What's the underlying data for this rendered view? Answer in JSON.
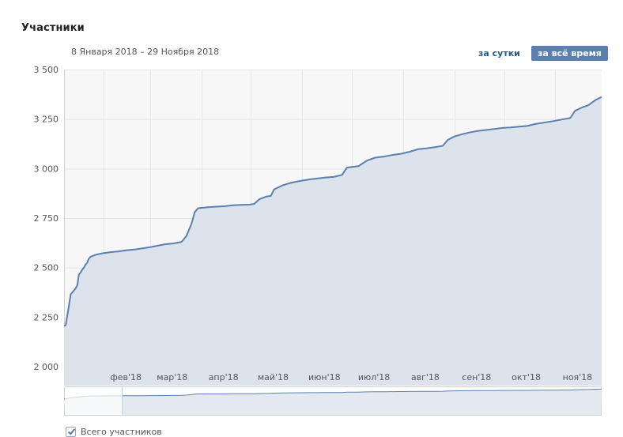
{
  "header": {
    "title": "Участники",
    "date_range": "8 Января 2018 – 29 Ноября 2018"
  },
  "controls": {
    "day_label": "за сутки",
    "all_time_label": "за всё время"
  },
  "legend": {
    "series_label": "Всего участников",
    "checked": true
  },
  "colors": {
    "line": "#5b7faf",
    "area": "#dde3ec",
    "plot_bg": "#f7f7f7",
    "button_active": "#5b7faf"
  },
  "chart_data": {
    "type": "area",
    "title": "Участники",
    "xlabel": "",
    "ylabel": "",
    "ylim": [
      2000,
      3500
    ],
    "yticks": [
      2000,
      2250,
      2500,
      2750,
      3000,
      3250,
      3500
    ],
    "ytick_labels": [
      "2 000",
      "2 250",
      "2 500",
      "2 750",
      "3 000",
      "3 250",
      "3 500"
    ],
    "xlim": [
      "2018-01-08",
      "2018-11-29"
    ],
    "month_ticks": [
      {
        "date": "2018-02-01",
        "label": "фев'18"
      },
      {
        "date": "2018-03-01",
        "label": "мар'18"
      },
      {
        "date": "2018-04-01",
        "label": "апр'18"
      },
      {
        "date": "2018-05-01",
        "label": "май'18"
      },
      {
        "date": "2018-06-01",
        "label": "июн'18"
      },
      {
        "date": "2018-07-01",
        "label": "июл'18"
      },
      {
        "date": "2018-08-01",
        "label": "авг'18"
      },
      {
        "date": "2018-09-01",
        "label": "сен'18"
      },
      {
        "date": "2018-10-01",
        "label": "окт'18"
      },
      {
        "date": "2018-11-01",
        "label": "ноя'18"
      }
    ],
    "grid": true,
    "legend_position": "bottom-left",
    "series": [
      {
        "name": "Всего участников",
        "points": [
          [
            "2018-01-08",
            2205
          ],
          [
            "2018-01-09",
            2210
          ],
          [
            "2018-01-10",
            2260
          ],
          [
            "2018-01-11",
            2310
          ],
          [
            "2018-01-12",
            2365
          ],
          [
            "2018-01-13",
            2375
          ],
          [
            "2018-01-14",
            2385
          ],
          [
            "2018-01-15",
            2395
          ],
          [
            "2018-01-16",
            2410
          ],
          [
            "2018-01-17",
            2465
          ],
          [
            "2018-01-18",
            2475
          ],
          [
            "2018-01-19",
            2490
          ],
          [
            "2018-01-20",
            2500
          ],
          [
            "2018-01-21",
            2515
          ],
          [
            "2018-01-22",
            2525
          ],
          [
            "2018-01-23",
            2545
          ],
          [
            "2018-01-24",
            2555
          ],
          [
            "2018-01-27",
            2565
          ],
          [
            "2018-01-31",
            2572
          ],
          [
            "2018-02-05",
            2578
          ],
          [
            "2018-02-10",
            2582
          ],
          [
            "2018-02-15",
            2588
          ],
          [
            "2018-02-20",
            2592
          ],
          [
            "2018-02-25",
            2598
          ],
          [
            "2018-03-01",
            2603
          ],
          [
            "2018-03-05",
            2610
          ],
          [
            "2018-03-10",
            2618
          ],
          [
            "2018-03-15",
            2622
          ],
          [
            "2018-03-20",
            2630
          ],
          [
            "2018-03-23",
            2660
          ],
          [
            "2018-03-26",
            2720
          ],
          [
            "2018-03-28",
            2780
          ],
          [
            "2018-03-30",
            2800
          ],
          [
            "2018-04-05",
            2805
          ],
          [
            "2018-04-10",
            2808
          ],
          [
            "2018-04-15",
            2810
          ],
          [
            "2018-04-20",
            2815
          ],
          [
            "2018-04-25",
            2817
          ],
          [
            "2018-04-30",
            2818
          ],
          [
            "2018-05-03",
            2822
          ],
          [
            "2018-05-06",
            2845
          ],
          [
            "2018-05-10",
            2858
          ],
          [
            "2018-05-13",
            2862
          ],
          [
            "2018-05-15",
            2895
          ],
          [
            "2018-05-20",
            2915
          ],
          [
            "2018-05-25",
            2928
          ],
          [
            "2018-05-31",
            2938
          ],
          [
            "2018-06-05",
            2945
          ],
          [
            "2018-06-10",
            2950
          ],
          [
            "2018-06-15",
            2955
          ],
          [
            "2018-06-20",
            2958
          ],
          [
            "2018-06-25",
            2968
          ],
          [
            "2018-06-28",
            3005
          ],
          [
            "2018-07-01",
            3008
          ],
          [
            "2018-07-05",
            3012
          ],
          [
            "2018-07-10",
            3040
          ],
          [
            "2018-07-15",
            3055
          ],
          [
            "2018-07-20",
            3060
          ],
          [
            "2018-07-25",
            3068
          ],
          [
            "2018-07-31",
            3075
          ],
          [
            "2018-08-05",
            3085
          ],
          [
            "2018-08-10",
            3098
          ],
          [
            "2018-08-15",
            3102
          ],
          [
            "2018-08-20",
            3108
          ],
          [
            "2018-08-25",
            3115
          ],
          [
            "2018-08-28",
            3145
          ],
          [
            "2018-09-01",
            3162
          ],
          [
            "2018-09-05",
            3172
          ],
          [
            "2018-09-10",
            3182
          ],
          [
            "2018-09-15",
            3190
          ],
          [
            "2018-09-20",
            3195
          ],
          [
            "2018-09-25",
            3200
          ],
          [
            "2018-09-30",
            3205
          ],
          [
            "2018-10-05",
            3208
          ],
          [
            "2018-10-10",
            3212
          ],
          [
            "2018-10-15",
            3215
          ],
          [
            "2018-10-20",
            3225
          ],
          [
            "2018-10-25",
            3232
          ],
          [
            "2018-10-31",
            3240
          ],
          [
            "2018-11-05",
            3248
          ],
          [
            "2018-11-10",
            3255
          ],
          [
            "2018-11-13",
            3292
          ],
          [
            "2018-11-17",
            3308
          ],
          [
            "2018-11-21",
            3320
          ],
          [
            "2018-11-25",
            3345
          ],
          [
            "2018-11-29",
            3362
          ]
        ]
      }
    ]
  }
}
